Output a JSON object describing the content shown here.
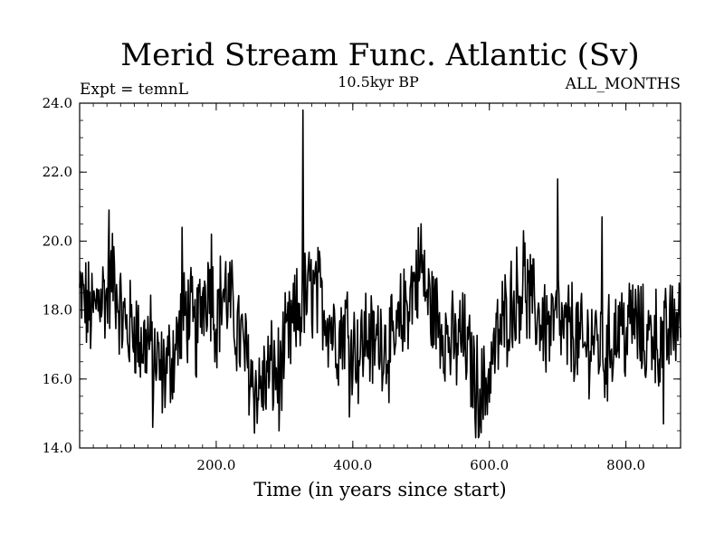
{
  "chart_data": {
    "type": "line",
    "title": "Merid Stream Func. Atlantic (Sv)",
    "subtitle": "10.5kyr BP",
    "left_label": "Expt = temnL",
    "right_label": "ALL_MONTHS",
    "xlabel": "Time (in years since start)",
    "ylabel": "",
    "xlim": [
      0,
      880
    ],
    "ylim": [
      14.0,
      24.0
    ],
    "x_ticks": [
      {
        "value": 200,
        "label": "200.0"
      },
      {
        "value": 400,
        "label": "400.0"
      },
      {
        "value": 600,
        "label": "600.0"
      },
      {
        "value": 800,
        "label": "800.0"
      }
    ],
    "y_ticks": [
      {
        "value": 14,
        "label": "14.0"
      },
      {
        "value": 16,
        "label": "16.0"
      },
      {
        "value": 18,
        "label": "18.0"
      },
      {
        "value": 20,
        "label": "20.0"
      },
      {
        "value": 22,
        "label": "22.0"
      },
      {
        "value": 24,
        "label": "24.0"
      }
    ],
    "grid": false,
    "line_color": "#000000",
    "series": [
      {
        "x": [
          0,
          10,
          20,
          30,
          40,
          50,
          60,
          70,
          80,
          90,
          100,
          110,
          120,
          130,
          140,
          150,
          160,
          170,
          180,
          190,
          200,
          210,
          220,
          230,
          240,
          250,
          260,
          270,
          280,
          290,
          300,
          310,
          320,
          330,
          340,
          350,
          360,
          370,
          380,
          390,
          400,
          410,
          420,
          430,
          440,
          450,
          460,
          470,
          480,
          490,
          500,
          510,
          520,
          530,
          540,
          550,
          560,
          570,
          580,
          590,
          600,
          610,
          620,
          630,
          640,
          650,
          660,
          670,
          680,
          690,
          700,
          710,
          720,
          730,
          740,
          750,
          760,
          770,
          780,
          790,
          800,
          810,
          820,
          830,
          840,
          850,
          860,
          870,
          880
        ],
        "values": [
          18.4,
          18.1,
          17.8,
          18.6,
          18.3,
          19.1,
          17.9,
          17.4,
          17.6,
          16.9,
          17.2,
          16.6,
          16.1,
          16.4,
          16.9,
          17.6,
          18.0,
          17.2,
          18.4,
          18.9,
          17.7,
          18.6,
          18.2,
          17.5,
          16.9,
          16.2,
          15.6,
          15.9,
          16.3,
          16.1,
          16.8,
          17.4,
          17.9,
          18.3,
          18.6,
          18.4,
          18.0,
          17.5,
          17.2,
          17.7,
          17.1,
          16.7,
          17.4,
          16.9,
          17.3,
          17.0,
          16.8,
          17.6,
          18.2,
          18.8,
          19.2,
          18.3,
          17.9,
          17.6,
          17.1,
          16.9,
          17.3,
          16.6,
          16.0,
          15.5,
          16.2,
          17.0,
          17.6,
          18.1,
          18.4,
          18.8,
          18.2,
          17.9,
          17.6,
          17.4,
          17.8,
          17.2,
          17.5,
          17.1,
          16.8,
          17.3,
          17.0,
          16.6,
          17.2,
          17.6,
          17.3,
          17.8,
          17.4,
          17.0,
          17.5,
          16.9,
          17.2,
          17.6,
          17.9
        ]
      }
    ],
    "spikes": [
      {
        "x": 43,
        "value": 20.9
      },
      {
        "x": 150,
        "value": 20.4
      },
      {
        "x": 193,
        "value": 20.2
      },
      {
        "x": 327,
        "value": 23.8
      },
      {
        "x": 500,
        "value": 20.5
      },
      {
        "x": 650,
        "value": 20.3
      },
      {
        "x": 700,
        "value": 21.8
      },
      {
        "x": 765,
        "value": 20.7
      },
      {
        "x": 395,
        "value": 14.9
      },
      {
        "x": 580,
        "value": 14.3
      },
      {
        "x": 107,
        "value": 14.6
      },
      {
        "x": 292,
        "value": 14.5
      },
      {
        "x": 855,
        "value": 14.7
      }
    ]
  }
}
